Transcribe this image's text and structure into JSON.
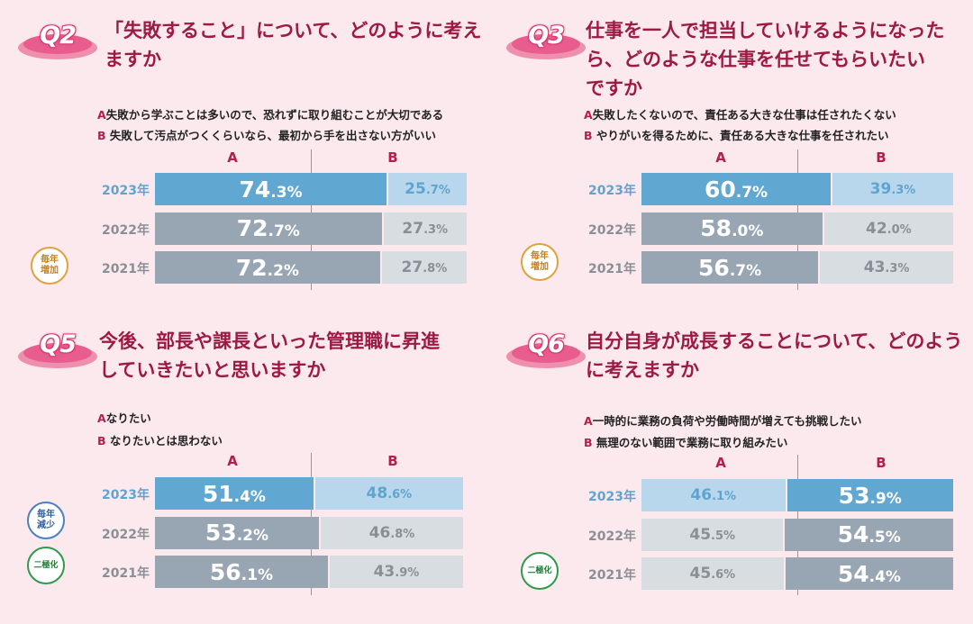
{
  "colors": {
    "accent": "#9c1a43",
    "current": "#60a8d2",
    "current_light": "#b9d7ec",
    "past_dark": "#98a6b3",
    "past_light": "#d8dde2"
  },
  "chart_data": [
    {
      "type": "bar",
      "id": "q2",
      "badge": "Q2",
      "title_line1": "「失敗すること」について、どのように考え",
      "title_line2": "ますか",
      "title_line3": "",
      "option_a_key": "A",
      "option_a": "失敗から学ぶことは多いので、恐れずに取り組むことが大切である",
      "option_b_key": "B",
      "option_b": "失敗して汚点がつくくらいなら、最初から手を出さない方がいい",
      "col_a": "A",
      "col_b": "B",
      "note": "毎年増加",
      "rows": [
        {
          "year": "2023年",
          "a": 74.3,
          "b": 25.7,
          "a_int": "74",
          "a_dec": ".3%",
          "b_int": "25",
          "b_dec": ".7%"
        },
        {
          "year": "2022年",
          "a": 72.7,
          "b": 27.3,
          "a_int": "72",
          "a_dec": ".7%",
          "b_int": "27",
          "b_dec": ".3%"
        },
        {
          "year": "2021年",
          "a": 72.2,
          "b": 27.8,
          "a_int": "72",
          "a_dec": ".2%",
          "b_int": "27",
          "b_dec": ".8%"
        }
      ]
    },
    {
      "type": "bar",
      "id": "q3",
      "badge": "Q3",
      "title_line1": "仕事を一人で担当していけるようになった",
      "title_line2": "ら、どのような仕事を任せてもらいたい",
      "title_line3": "ですか",
      "option_a_key": "A",
      "option_a": "失敗したくないので、責任ある大きな仕事は任されたくない",
      "option_b_key": "B",
      "option_b": "やりがいを得るために、責任ある大きな仕事を任されたい",
      "col_a": "A",
      "col_b": "B",
      "note": "毎年増加",
      "rows": [
        {
          "year": "2023年",
          "a": 60.7,
          "b": 39.3,
          "a_int": "60",
          "a_dec": ".7%",
          "b_int": "39",
          "b_dec": ".3%"
        },
        {
          "year": "2022年",
          "a": 58.0,
          "b": 42.0,
          "a_int": "58",
          "a_dec": ".0%",
          "b_int": "42",
          "b_dec": ".0%"
        },
        {
          "year": "2021年",
          "a": 56.7,
          "b": 43.3,
          "a_int": "56",
          "a_dec": ".7%",
          "b_int": "43",
          "b_dec": ".3%"
        }
      ]
    },
    {
      "type": "bar",
      "id": "q5",
      "badge": "Q5",
      "title_line1": "今後、部長や課長といった管理職に昇進",
      "title_line2": "していきたいと思いますか",
      "title_line3": "",
      "option_a_key": "A",
      "option_a": "なりたい",
      "option_b_key": "B",
      "option_b": "なりたいとは思わない",
      "col_a": "A",
      "col_b": "B",
      "note": "毎年減少",
      "note2": "二極化",
      "rows": [
        {
          "year": "2023年",
          "a": 51.4,
          "b": 48.6,
          "a_int": "51",
          "a_dec": ".4%",
          "b_int": "48",
          "b_dec": ".6%"
        },
        {
          "year": "2022年",
          "a": 53.2,
          "b": 46.8,
          "a_int": "53",
          "a_dec": ".2%",
          "b_int": "46",
          "b_dec": ".8%"
        },
        {
          "year": "2021年",
          "a": 56.1,
          "b": 43.9,
          "a_int": "56",
          "a_dec": ".1%",
          "b_int": "43",
          "b_dec": ".9%"
        }
      ]
    },
    {
      "type": "bar",
      "id": "q6",
      "badge": "Q6",
      "title_line1": "自分自身が成長することについて、どのよう",
      "title_line2": "に考えますか",
      "title_line3": "",
      "option_a_key": "A",
      "option_a": "一時的に業務の負荷や労働時間が増えても挑戦したい",
      "option_b_key": "B",
      "option_b": "無理のない範囲で業務に取り組みたい",
      "col_a": "A",
      "col_b": "B",
      "note": "二極化",
      "rows": [
        {
          "year": "2023年",
          "a": 46.1,
          "b": 53.9,
          "a_int": "46",
          "a_dec": ".1%",
          "b_int": "53",
          "b_dec": ".9%"
        },
        {
          "year": "2022年",
          "a": 45.5,
          "b": 54.5,
          "a_int": "45",
          "a_dec": ".5%",
          "b_int": "54",
          "b_dec": ".5%"
        },
        {
          "year": "2021年",
          "a": 45.6,
          "b": 54.4,
          "a_int": "45",
          "a_dec": ".6%",
          "b_int": "54",
          "b_dec": ".4%"
        }
      ]
    }
  ]
}
